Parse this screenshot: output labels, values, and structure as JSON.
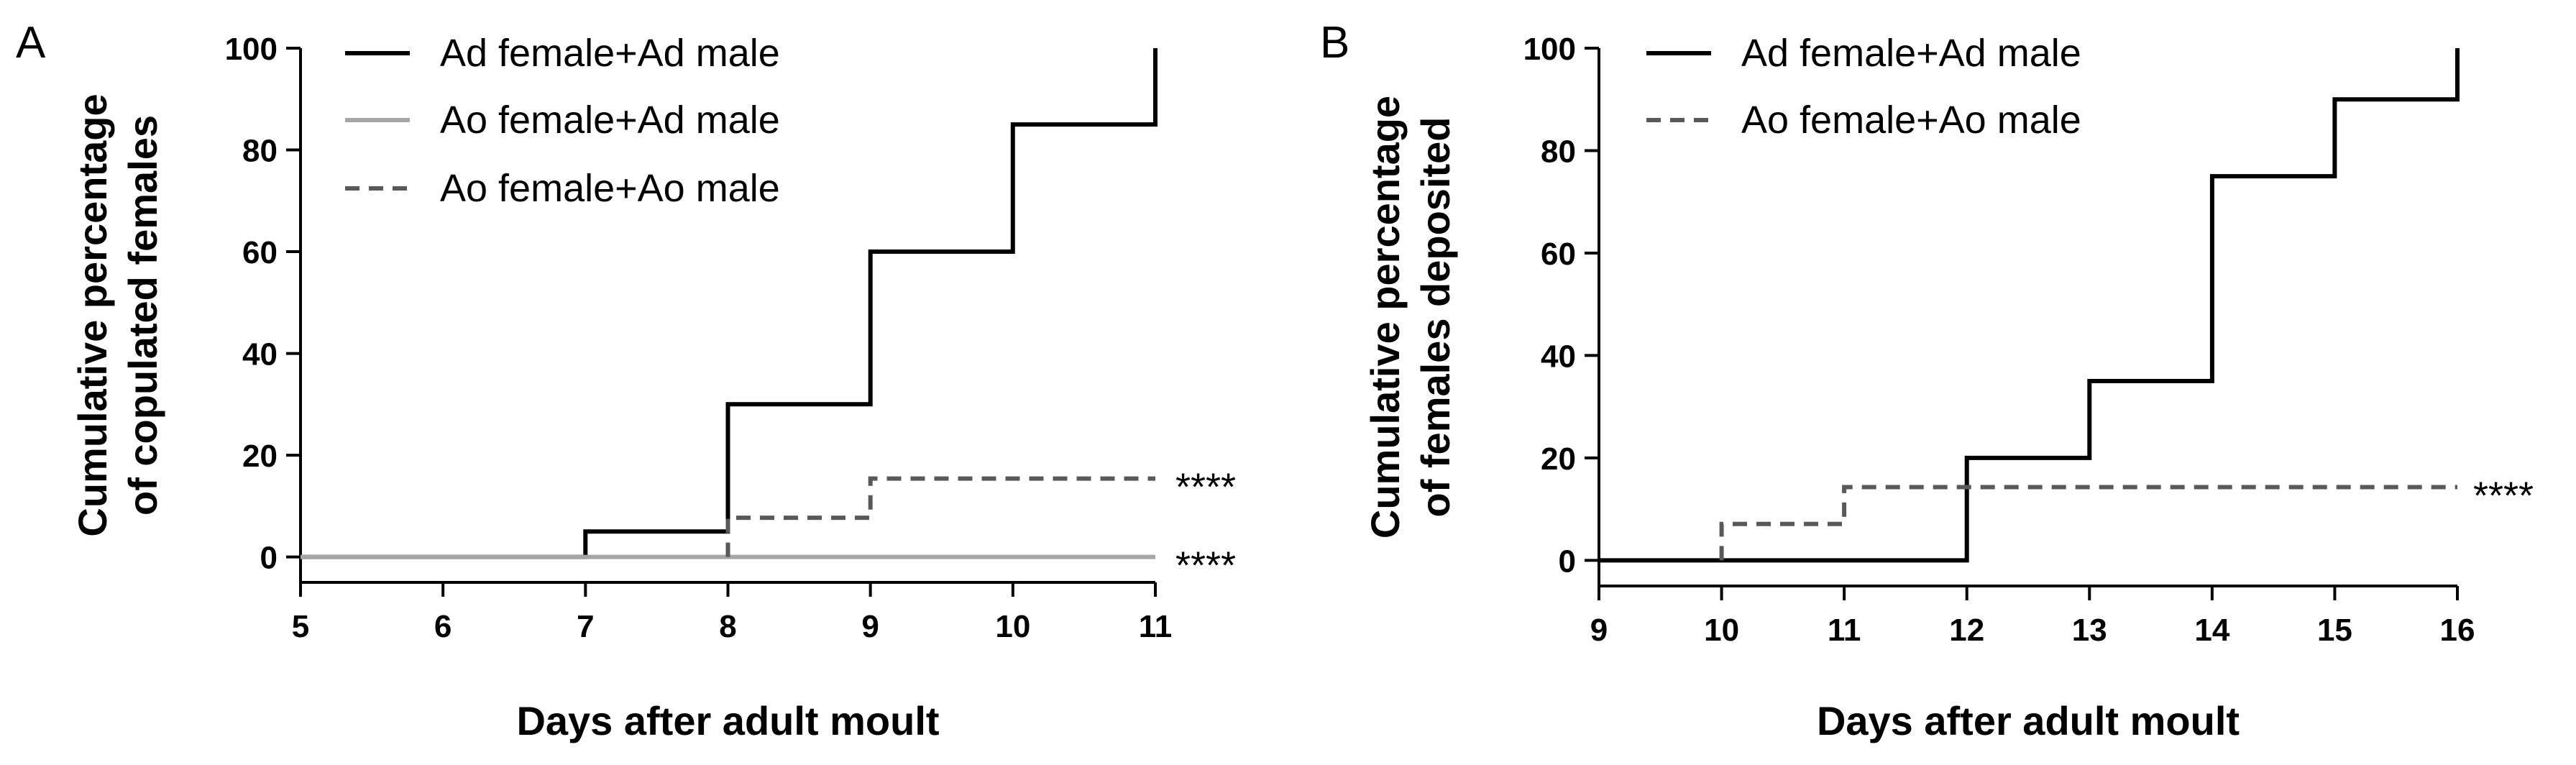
{
  "chart_data": [
    {
      "type": "line",
      "step": true,
      "panel_label": "A",
      "xlabel": "Days after adult moult",
      "ylabel_lines": [
        "Cumulative percentage",
        "of copulated females"
      ],
      "xlim": [
        5,
        11
      ],
      "ylim": [
        -5,
        100
      ],
      "xticks": [
        5,
        6,
        7,
        8,
        9,
        10,
        11
      ],
      "yticks": [
        0,
        20,
        40,
        60,
        80,
        100
      ],
      "grid": false,
      "legend_position": "top-left",
      "series": [
        {
          "name": "Ad female+Ad male",
          "color": "#000000",
          "dash": "solid",
          "points": [
            [
              5,
              0
            ],
            [
              7,
              0
            ],
            [
              7,
              5
            ],
            [
              8,
              5
            ],
            [
              8,
              30
            ],
            [
              9,
              30
            ],
            [
              9,
              60
            ],
            [
              10,
              60
            ],
            [
              10,
              85
            ],
            [
              11,
              85
            ],
            [
              11,
              100
            ]
          ]
        },
        {
          "name": "Ao female+Ad male",
          "color": "#a6a6a6",
          "dash": "solid",
          "points": [
            [
              5,
              0
            ],
            [
              11,
              0
            ]
          ],
          "annotation": "****"
        },
        {
          "name": "Ao female+Ao male",
          "color": "#595959",
          "dash": "dashed",
          "points": [
            [
              8,
              0
            ],
            [
              8,
              7.7
            ],
            [
              9,
              7.7
            ],
            [
              9,
              15.4
            ],
            [
              11,
              15.4
            ]
          ],
          "annotation": "****"
        }
      ]
    },
    {
      "type": "line",
      "step": true,
      "panel_label": "B",
      "xlabel": "Days after adult moult",
      "ylabel_lines": [
        "Cumulative percentage",
        "of females deposited"
      ],
      "xlim": [
        9,
        16
      ],
      "ylim": [
        -5,
        100
      ],
      "xticks": [
        9,
        10,
        11,
        12,
        13,
        14,
        15,
        16
      ],
      "yticks": [
        0,
        20,
        40,
        60,
        80,
        100
      ],
      "grid": false,
      "legend_position": "top-left",
      "series": [
        {
          "name": "Ad female+Ad male",
          "color": "#000000",
          "dash": "solid",
          "points": [
            [
              9,
              0
            ],
            [
              12,
              0
            ],
            [
              12,
              20
            ],
            [
              13,
              20
            ],
            [
              13,
              35
            ],
            [
              14,
              35
            ],
            [
              14,
              75
            ],
            [
              15,
              75
            ],
            [
              15,
              90
            ],
            [
              16,
              90
            ],
            [
              16,
              100
            ]
          ]
        },
        {
          "name": "Ao female+Ao male",
          "color": "#595959",
          "dash": "dashed",
          "points": [
            [
              10,
              0
            ],
            [
              10,
              7.1
            ],
            [
              11,
              7.1
            ],
            [
              11,
              14.3
            ],
            [
              16,
              14.3
            ]
          ],
          "annotation": "****"
        }
      ]
    }
  ]
}
